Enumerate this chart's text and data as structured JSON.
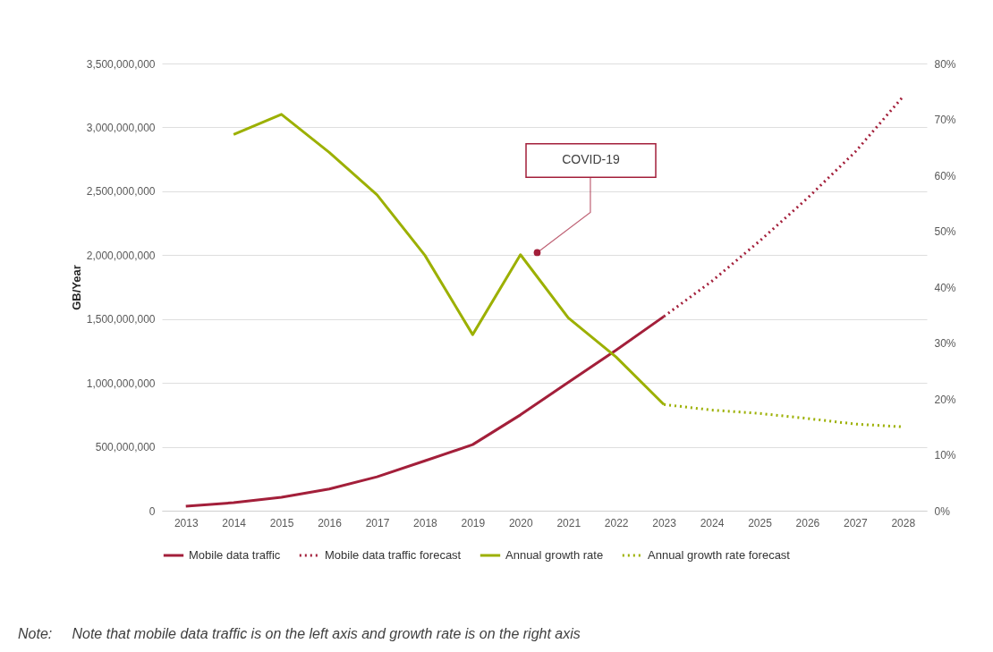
{
  "chart_data": {
    "type": "line",
    "ylabel": "GB/Year",
    "xlim": [
      2012.5,
      2028.5
    ],
    "xticks": [
      2013,
      2014,
      2015,
      2016,
      2017,
      2018,
      2019,
      2020,
      2021,
      2022,
      2023,
      2024,
      2025,
      2026,
      2027,
      2028
    ],
    "ylim": [
      0,
      3500000000
    ],
    "yticks": [
      0,
      {
        "value": 500000000,
        "label": "500,000,000"
      },
      {
        "value": 1000000000,
        "label": "1,000,000,000"
      },
      {
        "value": 1500000000,
        "label": "1,500,000,000"
      },
      {
        "value": 2000000000,
        "label": "2,000,000,000"
      },
      {
        "value": 2500000000,
        "label": "2,500,000,000"
      },
      {
        "value": 3000000000,
        "label": "3,000,000,000"
      },
      {
        "value": 3500000000,
        "label": "3,500,000,000"
      }
    ],
    "y2lim": [
      0,
      80
    ],
    "y2ticks": [
      {
        "value": 0,
        "label": "0%"
      },
      {
        "value": 10,
        "label": "10%"
      },
      {
        "value": 20,
        "label": "20%"
      },
      {
        "value": 30,
        "label": "30%"
      },
      {
        "value": 40,
        "label": "40%"
      },
      {
        "value": 50,
        "label": "50%"
      },
      {
        "value": 60,
        "label": "60%"
      },
      {
        "value": 70,
        "label": "70%"
      },
      {
        "value": 80,
        "label": "80%"
      }
    ],
    "grid": "y",
    "legend": "bottom",
    "marker": "none",
    "series": [
      {
        "name": "Mobile data traffic",
        "color": "#a31f3a",
        "line_style": "solid",
        "x": [
          2013,
          2014,
          2015,
          2016,
          2017,
          2018,
          2019,
          2020,
          2021,
          2022,
          2023
        ],
        "values": [
          35000000,
          63000000,
          105000000,
          170000000,
          265000000,
          390000000,
          517000000,
          750000000,
          1005000000,
          1257000000,
          1520000000
        ]
      },
      {
        "name": "Mobile data traffic forecast",
        "color": "#a31f3a",
        "line_style": "dotted",
        "x": [
          2023,
          2024,
          2025,
          2026,
          2027,
          2028
        ],
        "values": [
          1520000000,
          1795000000,
          2110000000,
          2445000000,
          2807000000,
          3240000000
        ]
      },
      {
        "name": "Annual growth rate",
        "color": "#9cb000",
        "line_style": "solid",
        "axis": "y2",
        "x": [
          2014,
          2015,
          2016,
          2017,
          2018,
          2019,
          2020,
          2021,
          2022,
          2023
        ],
        "values": [
          67.3,
          70.9,
          64.1,
          56.5,
          45.7,
          31.5,
          45.8,
          34.5,
          27.5,
          19.0
        ]
      },
      {
        "name": "Annual growth rate forecast",
        "color": "#9cb000",
        "line_style": "dotted",
        "axis": "y2",
        "x": [
          2023,
          2024,
          2025,
          2026,
          2027,
          2028
        ],
        "values": [
          19.0,
          18.0,
          17.4,
          16.5,
          15.5,
          15.0
        ]
      }
    ],
    "annotations": [
      {
        "text": "COVID-19",
        "x": 2020.35,
        "y": 2020000000
      },
      "Note:     Note that mobile data traffic is on the left axis and growth rate is on the right axis"
    ]
  }
}
